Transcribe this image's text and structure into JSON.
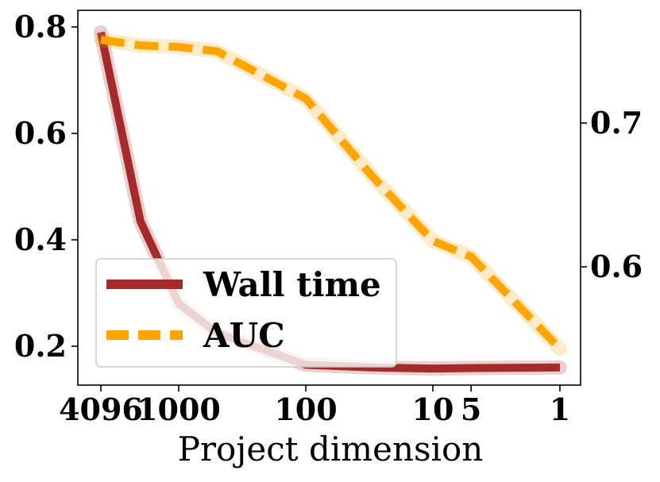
{
  "chart_data": {
    "type": "line",
    "title": "",
    "xlabel": "Project dimension",
    "ylabel_left": "",
    "ylabel_right": "",
    "x_tick_labels": [
      "4096",
      "1000",
      "100",
      "10",
      "5",
      "1"
    ],
    "x_values": [
      4096,
      2000,
      1000,
      500,
      100,
      30,
      10,
      5,
      1
    ],
    "x_scale": "log",
    "x_reversed": true,
    "y_left_ticks": [
      "0.2",
      "0.4",
      "0.6",
      "0.8"
    ],
    "y_right_ticks": [
      "0.6",
      "0.7"
    ],
    "series": [
      {
        "name": "Wall time",
        "axis": "left",
        "style": "solid",
        "color": "#a52a2a",
        "values": [
          0.79,
          0.435,
          0.28,
          0.225,
          0.165,
          0.16,
          0.158,
          0.159,
          0.16
        ]
      },
      {
        "name": "AUC",
        "axis": "right",
        "style": "dashed",
        "color": "#ffa500",
        "values": [
          0.758,
          0.754,
          0.753,
          0.75,
          0.717,
          0.663,
          0.618,
          0.607,
          0.543
        ]
      }
    ],
    "legend": {
      "placement": "lower-left",
      "entries": [
        "Wall time",
        "AUC"
      ]
    },
    "grid": false
  }
}
